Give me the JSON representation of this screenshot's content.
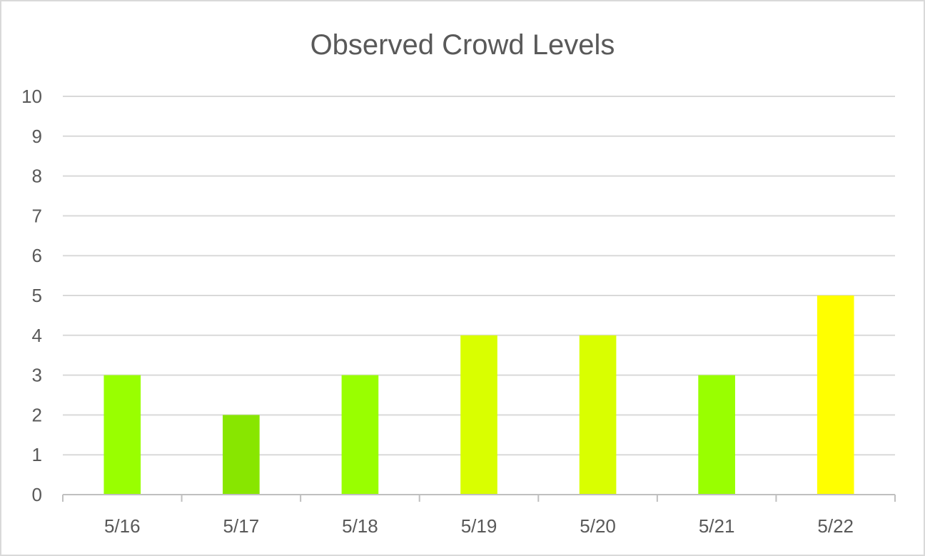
{
  "chart_data": {
    "type": "bar",
    "title": "Observed Crowd Levels",
    "xlabel": "",
    "ylabel": "",
    "categories": [
      "5/16",
      "5/17",
      "5/18",
      "5/19",
      "5/20",
      "5/21",
      "5/22"
    ],
    "values": [
      3,
      2,
      3,
      4,
      4,
      3,
      5
    ],
    "bar_colors": [
      "#99ff00",
      "#88e600",
      "#99ff00",
      "#d9ff00",
      "#d9ff00",
      "#99ff00",
      "#ffff00"
    ],
    "ylim": [
      0,
      10
    ],
    "yticks": [
      "0",
      "1",
      "2",
      "3",
      "4",
      "5",
      "6",
      "7",
      "8",
      "9",
      "10"
    ],
    "grid": true,
    "legend": "none"
  },
  "colors": {
    "gridline": "#d9d9d9",
    "axis": "#bfbfbf",
    "text": "#595959",
    "frame": "#d9d9d9"
  }
}
